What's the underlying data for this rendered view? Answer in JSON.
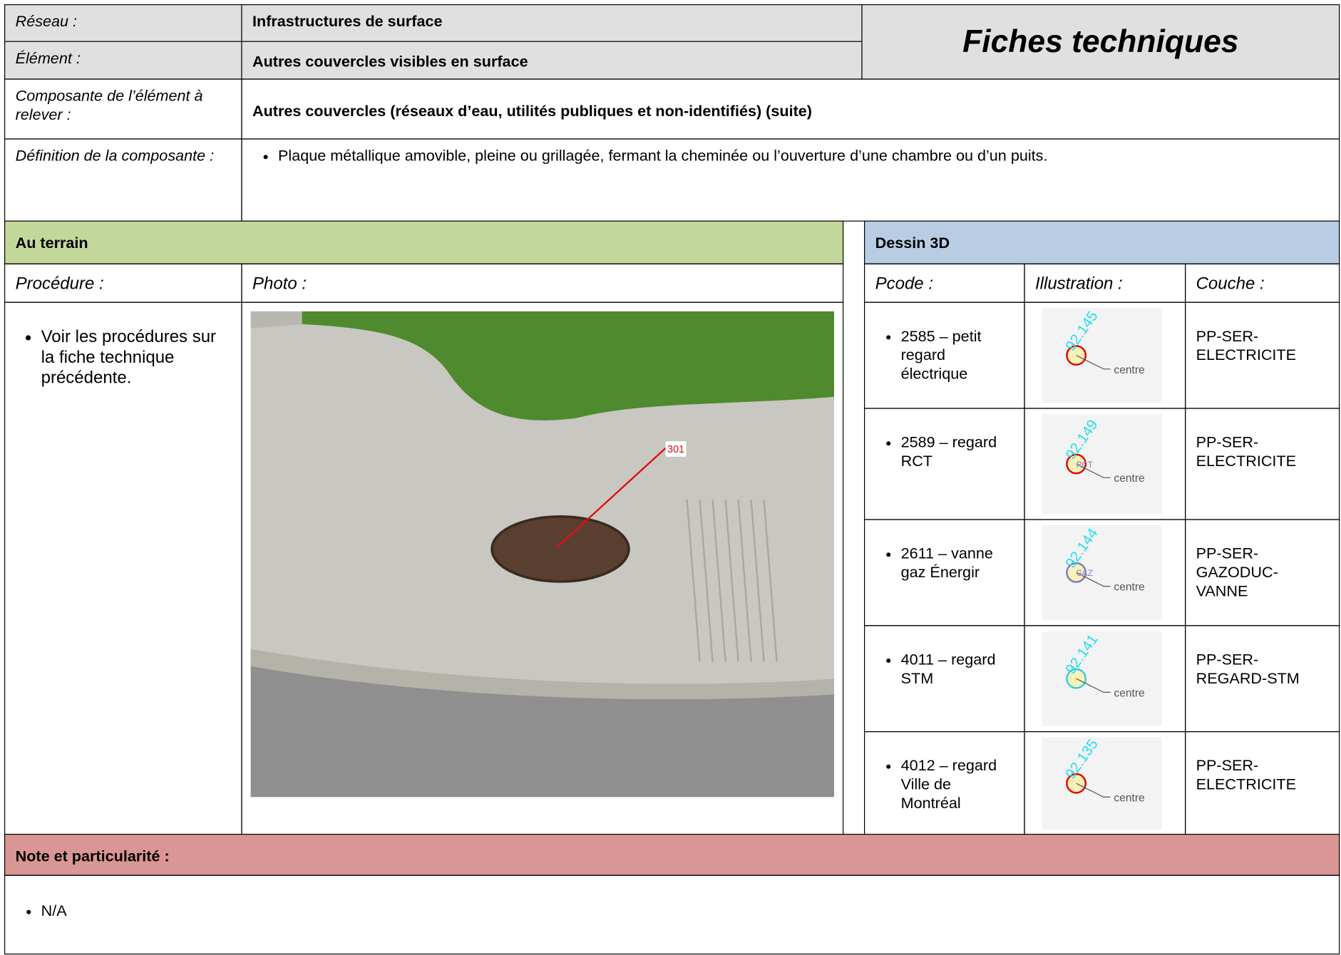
{
  "header": {
    "reseau_label": "Réseau :",
    "reseau": "Infrastructures de surface",
    "element_label": "Élément :",
    "element": "Autres couvercles visibles en surface",
    "title": "Fiches techniques",
    "composante_label": "Composante de l’élément à relever :",
    "composante": "Autres couvercles (réseaux d’eau, utilités publiques et non-identifiés) (suite)",
    "definition_label": "Définition de la composante :",
    "definition": [
      "Plaque métallique amovible, pleine ou grillagée, fermant la cheminée ou l’ouverture d’une chambre ou d’un puits."
    ]
  },
  "terrain": {
    "title": "Au terrain",
    "procedure_label": "Procédure :",
    "photo_label": "Photo :",
    "procedure": [
      "Voir les procédures sur la fiche technique précédente."
    ],
    "photo_marker": "301"
  },
  "dessin": {
    "title": "Dessin 3D",
    "columns": [
      "Pcode :",
      "Illustration :",
      "Couche :"
    ],
    "rows": [
      {
        "pcode": "2585 – petit regard électrique",
        "elevation": "92.145",
        "centre": "centre",
        "couche": "PP-SER-ELECTRICITE",
        "color": "#e00000"
      },
      {
        "pcode": "2589 – regard RCT",
        "elevation": "92.149",
        "tag": "RCT",
        "centre": "centre",
        "couche": "PP-SER-ELECTRICITE",
        "color": "#e00000"
      },
      {
        "pcode": "2611 – vanne gaz Énergir",
        "elevation": "92.144",
        "tag": "GAZ",
        "centre": "centre",
        "couche": "PP-SER-GAZODUC-VANNE",
        "color": "#7777cc"
      },
      {
        "pcode": "4011 – regard STM",
        "elevation": "92.141",
        "centre": "centre",
        "couche": "PP-SER-REGARD-STM",
        "color": "#33ccee"
      },
      {
        "pcode": "4012 – regard Ville de Montréal",
        "elevation": "92.135",
        "centre": "centre",
        "couche": "PP-SER-ELECTRICITE",
        "color": "#e00000"
      }
    ]
  },
  "note": {
    "title": "Note et particularité :",
    "items": [
      "N/A"
    ]
  }
}
